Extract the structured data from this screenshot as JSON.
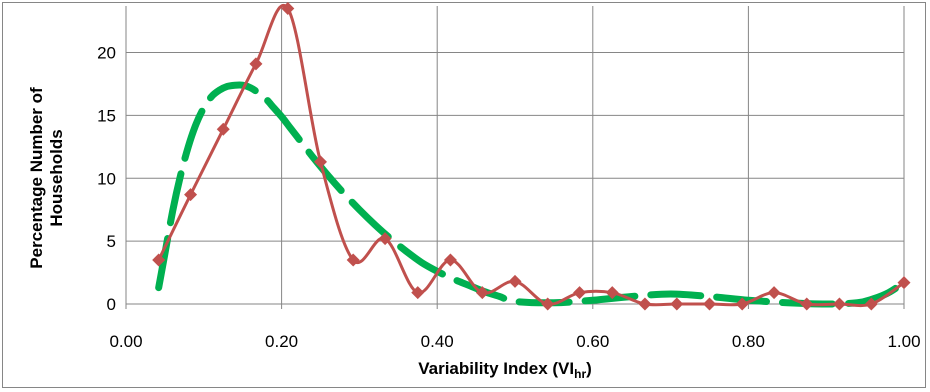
{
  "chart_data": {
    "type": "line",
    "xlabel": "Variability Index (VI",
    "xlabel_sub": "hr",
    "xlabel_close": ")",
    "ylabel_line1": "Percentage  Number of",
    "ylabel_line2": "Households",
    "xlim": [
      0,
      1
    ],
    "ylim": [
      0,
      23.7
    ],
    "x_ticks": [
      0,
      0.2,
      0.4,
      0.6,
      0.8,
      1.0
    ],
    "x_tick_labels": [
      "0.00",
      "0.20",
      "0.40",
      "0.60",
      "0.80",
      "1.00"
    ],
    "y_ticks": [
      0,
      5,
      10,
      15,
      20
    ],
    "y_tick_labels": [
      "0",
      "5",
      "10",
      "15",
      "20"
    ],
    "grid": true,
    "legend": "none",
    "series": [
      {
        "kind": "observed",
        "style": "solid line with diamond markers",
        "color": "#c0504d",
        "x": [
          0.042,
          0.083,
          0.125,
          0.167,
          0.208,
          0.25,
          0.292,
          0.333,
          0.375,
          0.417,
          0.458,
          0.5,
          0.542,
          0.583,
          0.625,
          0.667,
          0.708,
          0.75,
          0.792,
          0.833,
          0.875,
          0.917,
          0.958,
          1.0
        ],
        "y": [
          3.5,
          8.7,
          13.9,
          19.1,
          23.5,
          11.3,
          3.5,
          5.2,
          0.9,
          3.5,
          0.9,
          1.8,
          0.0,
          0.9,
          0.9,
          0.0,
          0.0,
          0.0,
          0.0,
          0.9,
          0.0,
          0.0,
          0.0,
          1.7
        ]
      },
      {
        "kind": "fitted",
        "style": "thick dashed curve",
        "color": "#00b050",
        "x": [
          0.042,
          0.05,
          0.06,
          0.07,
          0.08,
          0.09,
          0.1,
          0.11,
          0.12,
          0.13,
          0.14,
          0.15,
          0.16,
          0.17,
          0.18,
          0.19,
          0.2,
          0.21,
          0.22,
          0.23,
          0.24,
          0.26,
          0.28,
          0.3,
          0.32,
          0.34,
          0.36,
          0.38,
          0.4,
          0.42,
          0.44,
          0.46,
          0.48,
          0.5,
          0.55,
          0.6,
          0.65,
          0.7,
          0.75,
          0.8,
          0.85,
          0.9,
          0.94,
          0.96,
          0.98,
          1.0
        ],
        "y": [
          1.3,
          4.0,
          7.4,
          10.2,
          12.5,
          14.3,
          15.6,
          16.5,
          17.0,
          17.3,
          17.4,
          17.4,
          17.2,
          16.8,
          16.3,
          15.6,
          14.9,
          14.1,
          13.3,
          12.5,
          11.7,
          10.2,
          8.8,
          7.5,
          6.3,
          5.2,
          4.2,
          3.3,
          2.6,
          2.0,
          1.5,
          1.0,
          0.6,
          0.2,
          0.1,
          0.3,
          0.6,
          0.8,
          0.6,
          0.3,
          0.1,
          0.0,
          0.1,
          0.4,
          0.9,
          1.7
        ]
      }
    ]
  }
}
